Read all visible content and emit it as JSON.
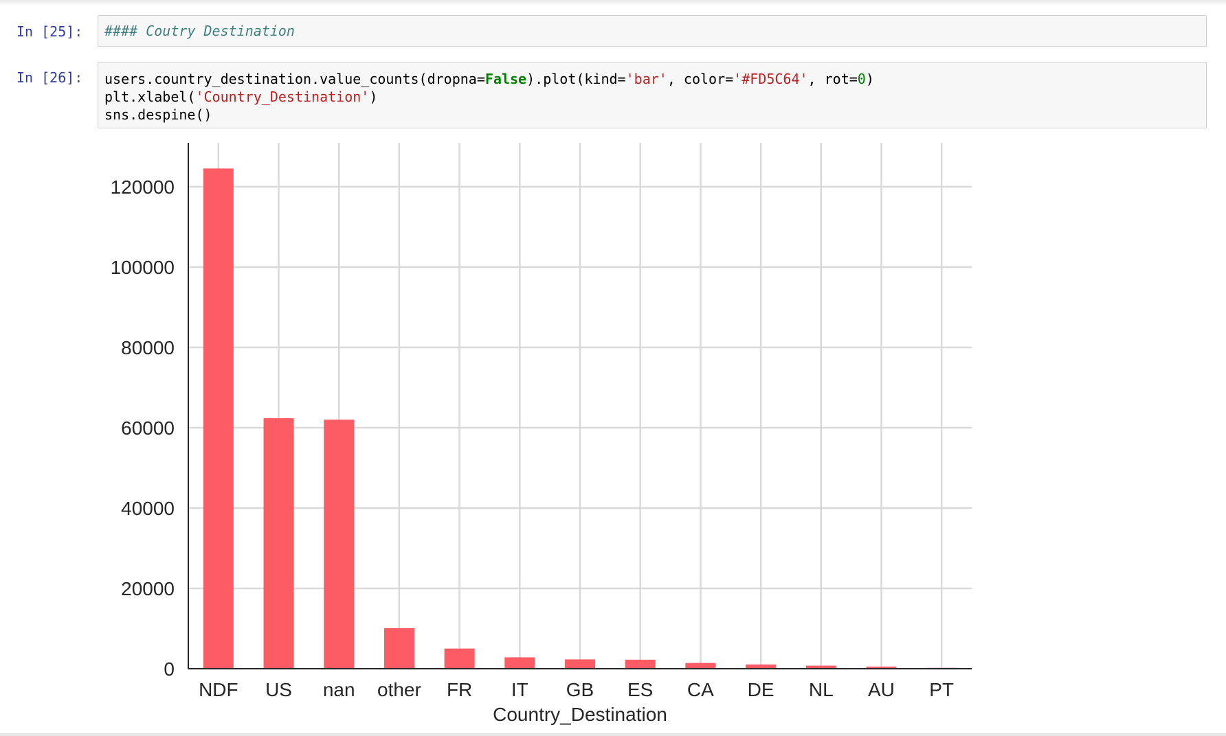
{
  "cells": [
    {
      "prompt": "In [25]:",
      "lines": [
        [
          {
            "t": "#### Coutry Destination",
            "c": "md-heading"
          }
        ]
      ]
    },
    {
      "prompt": "In [26]:",
      "lines": [
        [
          {
            "t": "users.country_destination.value_counts(dropna=",
            "c": "tok-plain"
          },
          {
            "t": "False",
            "c": "tok-kw"
          },
          {
            "t": ").plot(kind=",
            "c": "tok-plain"
          },
          {
            "t": "'bar'",
            "c": "tok-str"
          },
          {
            "t": ", color=",
            "c": "tok-plain"
          },
          {
            "t": "'#FD5C64'",
            "c": "tok-str"
          },
          {
            "t": ", rot=",
            "c": "tok-plain"
          },
          {
            "t": "0",
            "c": "tok-num"
          },
          {
            "t": ")",
            "c": "tok-plain"
          }
        ],
        [
          {
            "t": "plt.xlabel(",
            "c": "tok-plain"
          },
          {
            "t": "'Country_Destination'",
            "c": "tok-str"
          },
          {
            "t": ")",
            "c": "tok-plain"
          }
        ],
        [
          {
            "t": "sns.despine()",
            "c": "tok-plain"
          }
        ]
      ]
    }
  ],
  "colors": {
    "bar": "#FD5C64",
    "grid": "#d9d9d9",
    "axis": "#262626",
    "prompt": "#303f9f"
  },
  "chart_data": {
    "type": "bar",
    "categories": [
      "NDF",
      "US",
      "nan",
      "other",
      "FR",
      "IT",
      "GB",
      "ES",
      "CA",
      "DE",
      "NL",
      "AU",
      "PT"
    ],
    "values": [
      124543,
      62376,
      62000,
      10094,
      5023,
      2835,
      2324,
      2249,
      1428,
      1061,
      762,
      539,
      217
    ],
    "title": "",
    "xlabel": "Country_Destination",
    "ylabel": "",
    "ylim": [
      0,
      125000
    ],
    "yticks": [
      0,
      20000,
      40000,
      60000,
      80000,
      100000,
      120000
    ],
    "ytick_labels": [
      "0",
      "20000",
      "40000",
      "60000",
      "80000",
      "100000",
      "120000"
    ],
    "grid": true,
    "legend": "none"
  }
}
